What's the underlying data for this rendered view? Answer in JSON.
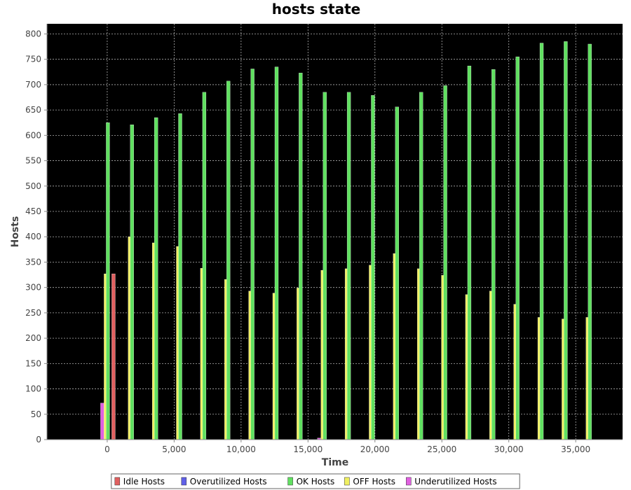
{
  "chart_data": {
    "type": "bar",
    "title": "hosts state",
    "xlabel": "Time",
    "ylabel": "Hosts",
    "xlim": [
      -4500,
      38500
    ],
    "ylim": [
      0,
      820
    ],
    "x_ticks": [
      0,
      5000,
      10000,
      15000,
      20000,
      25000,
      30000,
      35000
    ],
    "x_tick_labels": [
      "0",
      "5,000",
      "10,000",
      "15,000",
      "20,000",
      "25,000",
      "30,000",
      "35,000"
    ],
    "y_ticks": [
      0,
      50,
      100,
      150,
      200,
      250,
      300,
      350,
      400,
      450,
      500,
      550,
      600,
      650,
      700,
      750,
      800
    ],
    "grid": true,
    "legend_position": "bottom",
    "background": "#000000",
    "x": [
      0,
      1800,
      3600,
      5400,
      7200,
      9000,
      10800,
      12600,
      14400,
      16200,
      18000,
      19800,
      21600,
      23400,
      25200,
      27000,
      28800,
      30600,
      32400,
      34200,
      36000
    ],
    "series": [
      {
        "name": "Idle Hosts",
        "color": "#e06060",
        "values": [
          327,
          0,
          0,
          0,
          0,
          0,
          0,
          0,
          0,
          0,
          0,
          0,
          0,
          0,
          0,
          0,
          0,
          0,
          0,
          0,
          0
        ]
      },
      {
        "name": "Overutilized Hosts",
        "color": "#6060e8",
        "values": [
          0,
          1,
          1,
          1,
          1,
          1,
          1,
          1,
          1,
          1,
          1,
          1,
          1,
          1,
          1,
          1,
          1,
          1,
          1,
          1,
          1
        ]
      },
      {
        "name": "OK Hosts",
        "color": "#60e060",
        "values": [
          625,
          621,
          635,
          643,
          685,
          707,
          731,
          735,
          723,
          685,
          685,
          679,
          656,
          685,
          698,
          737,
          730,
          755,
          782,
          785,
          780
        ]
      },
      {
        "name": "OFF Hosts",
        "color": "#f0f060",
        "values": [
          327,
          400,
          388,
          381,
          338,
          316,
          293,
          289,
          299,
          334,
          337,
          344,
          367,
          337,
          324,
          286,
          293,
          267,
          241,
          238,
          241
        ]
      },
      {
        "name": "Underutilized Hosts",
        "color": "#e060e0",
        "values": [
          72,
          0,
          0,
          0,
          0,
          0,
          0,
          0,
          0,
          3,
          0,
          0,
          0,
          0,
          0,
          0,
          0,
          0,
          0,
          0,
          0
        ]
      }
    ]
  }
}
